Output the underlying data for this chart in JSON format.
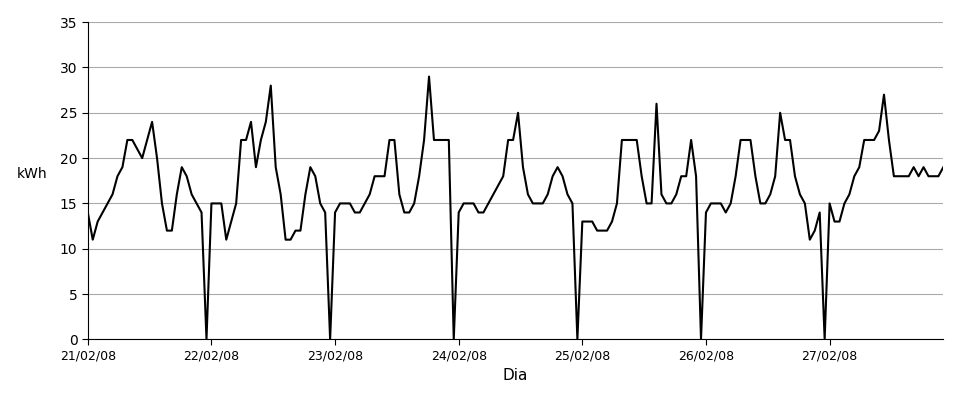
{
  "title": "",
  "xlabel": "Dia",
  "ylabel": "kWh",
  "ylim": [
    0,
    35
  ],
  "yticks": [
    0,
    5,
    10,
    15,
    20,
    25,
    30,
    35
  ],
  "background_color": "#ffffff",
  "line_color": "#000000",
  "grid_color": "#aaaaaa",
  "line_width": 1.5,
  "date_labels": [
    "21/02/08",
    "22/02/08",
    "23/02/08",
    "24/02/08",
    "25/02/08",
    "26/02/08",
    "27/02/08"
  ],
  "values": [
    14,
    11,
    13,
    14,
    15,
    16,
    18,
    19,
    22,
    22,
    21,
    20,
    22,
    24,
    20,
    15,
    12,
    12,
    16,
    19,
    18,
    16,
    15,
    14,
    0,
    15,
    15,
    15,
    11,
    13,
    15,
    22,
    22,
    24,
    19,
    22,
    24,
    28,
    19,
    16,
    11,
    11,
    12,
    12,
    16,
    19,
    18,
    15,
    14,
    0,
    14,
    15,
    15,
    15,
    14,
    14,
    15,
    16,
    18,
    18,
    18,
    22,
    22,
    16,
    14,
    14,
    15,
    18,
    22,
    29,
    22,
    22,
    22,
    22,
    0,
    14,
    15,
    15,
    15,
    14,
    14,
    15,
    16,
    17,
    18,
    22,
    22,
    25,
    19,
    16,
    15,
    15,
    15,
    16,
    18,
    19,
    18,
    16,
    15,
    0,
    13,
    13,
    13,
    12,
    12,
    12,
    13,
    15,
    22,
    22,
    22,
    22,
    18,
    15,
    15,
    26,
    16,
    15,
    15,
    16,
    18,
    18,
    22,
    18,
    0,
    14,
    15,
    15,
    15,
    14,
    15,
    18,
    22,
    22,
    22,
    18,
    15,
    15,
    16,
    18,
    25,
    22,
    22,
    18,
    16,
    15,
    11,
    12,
    14,
    0,
    15,
    13,
    13,
    15,
    16,
    18,
    19,
    22,
    22,
    22,
    23,
    27,
    22,
    18,
    18,
    18,
    18,
    19,
    18,
    19,
    18,
    18,
    18,
    19
  ]
}
